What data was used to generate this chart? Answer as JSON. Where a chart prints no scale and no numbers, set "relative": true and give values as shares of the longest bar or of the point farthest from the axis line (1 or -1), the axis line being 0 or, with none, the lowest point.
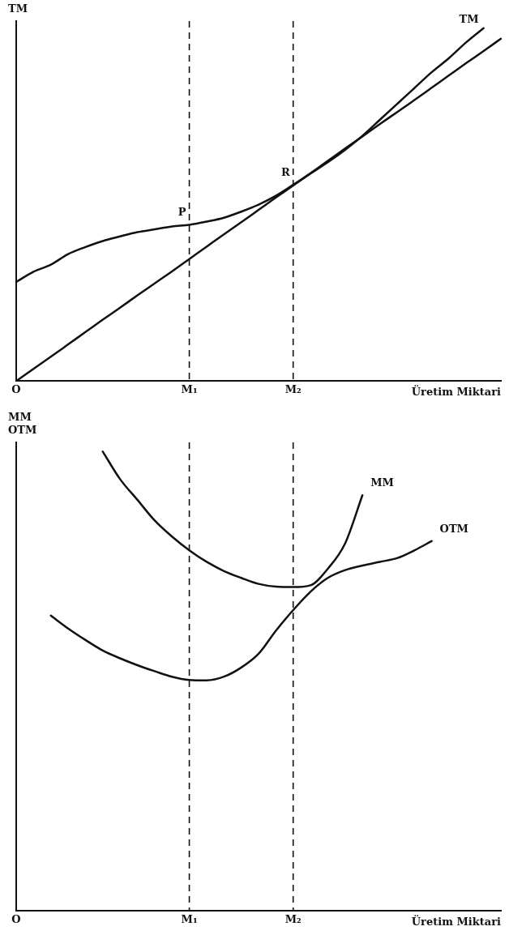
{
  "chart_data": [
    {
      "type": "line",
      "relative": true,
      "ylabel": "TM",
      "xlabel": "Üretim Miktari",
      "categories": [
        "O",
        null,
        null,
        null,
        null,
        null,
        null,
        null,
        null,
        null,
        "M₁",
        null,
        null,
        null,
        null,
        null,
        "M₂",
        null,
        null,
        null,
        null,
        null,
        null,
        null,
        null,
        null,
        null,
        null,
        null
      ],
      "tick_labels": "x",
      "grid": false,
      "legend": false,
      "marker": "none",
      "line_style": "solid",
      "series": [
        {
          "name": "TM",
          "color": "#111111",
          "values": [
            0.281,
            0.31,
            0.33,
            0.36,
            0.38,
            0.397,
            0.41,
            0.422,
            0.43,
            0.438,
            0.443,
            0.452,
            0.463,
            0.48,
            0.5,
            0.525,
            0.556,
            0.588,
            0.62,
            0.655,
            0.695,
            0.74,
            0.785,
            0.83,
            0.875,
            0.915,
            0.96,
            1,
            null
          ]
        },
        {
          "color": "#111111",
          "values": [
            0,
            0.035,
            0.069,
            0.104,
            0.139,
            0.174,
            0.208,
            0.243,
            0.277,
            0.311,
            0.346,
            0.381,
            0.416,
            0.45,
            0.485,
            0.52,
            0.554,
            0.589,
            0.624,
            0.659,
            0.693,
            0.728,
            0.762,
            0.796,
            0.831,
            0.866,
            0.901,
            0.935,
            0.97
          ]
        }
      ],
      "ref_lines": [
        {
          "axis": "x",
          "value": "M₁",
          "line_style": "dashed"
        },
        {
          "axis": "x",
          "value": "M₂",
          "line_style": "dashed"
        }
      ],
      "annotations": [
        {
          "text": "P",
          "x": "M₁",
          "y": 0.443
        },
        {
          "text": "R",
          "x": "M₂",
          "y": 0.556
        }
      ]
    },
    {
      "type": "line",
      "relative": true,
      "ylabel": "MM\nOTM",
      "xlabel": "Üretim Miktari",
      "categories": [
        "O",
        null,
        null,
        null,
        null,
        null,
        null,
        null,
        null,
        null,
        "M₁",
        null,
        null,
        null,
        null,
        null,
        "M₂",
        null,
        null,
        null,
        null,
        null,
        null,
        null,
        null,
        null,
        null,
        null,
        null
      ],
      "tick_labels": "x",
      "grid": false,
      "legend": false,
      "marker": "none",
      "line_style": "solid",
      "series": [
        {
          "name": "MM",
          "color": "#111111",
          "values": [
            null,
            null,
            null,
            null,
            null,
            1,
            0.94,
            0.895,
            0.85,
            0.815,
            0.785,
            0.76,
            0.74,
            0.725,
            0.712,
            0.706,
            0.705,
            0.709,
            0.745,
            0.8,
            0.905,
            null,
            null,
            null,
            null,
            null,
            null,
            null,
            null
          ]
        },
        {
          "name": "OTM",
          "color": "#111111",
          "values": [
            null,
            null,
            0.643,
            0.615,
            0.59,
            0.567,
            0.55,
            0.535,
            0.522,
            0.51,
            0.503,
            0.502,
            0.51,
            0.53,
            0.56,
            0.61,
            0.655,
            0.695,
            0.725,
            0.742,
            0.752,
            0.76,
            0.768,
            0.785,
            0.805,
            null,
            null,
            null,
            null
          ]
        }
      ],
      "ref_lines": [
        {
          "axis": "x",
          "value": "M₁",
          "line_style": "dashed"
        },
        {
          "axis": "x",
          "value": "M₂",
          "line_style": "dashed"
        }
      ]
    }
  ]
}
